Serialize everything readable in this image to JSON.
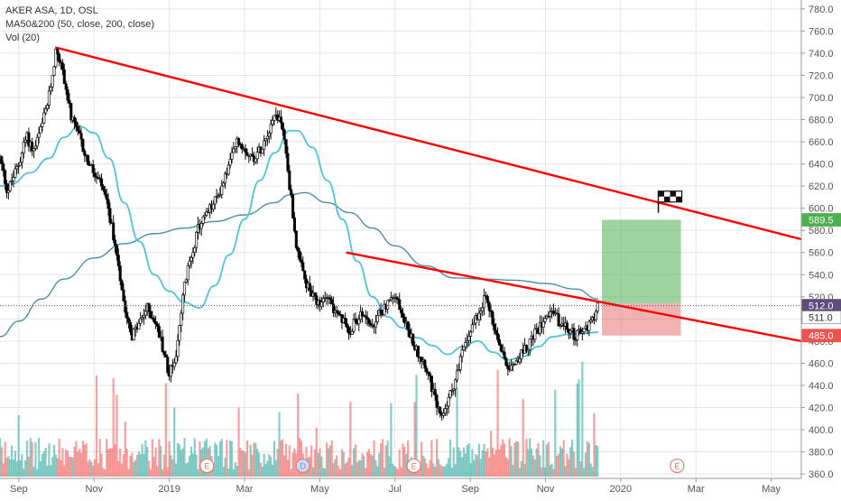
{
  "legend": {
    "title": "AKER ASA, 1D, OSL",
    "ma": "MA50&200 (50, close, 200, close)",
    "vol": "Vol (20)"
  },
  "colors": {
    "up": "#333333",
    "down": "#000000",
    "ma50": "#4fc3d9",
    "ma200": "#4a8ea7",
    "trend": "#ff0000",
    "vol_up": "#26a69a",
    "vol_down": "#ef5350",
    "target_zone": "#4caf50",
    "stop_zone": "#e57373",
    "current_price": "#5c4d7a",
    "background": "#ffffff",
    "grid": "#e6e6e6"
  },
  "chart_data": {
    "type": "candlestick",
    "title": "AKER ASA, 1D, OSL",
    "y_axis": {
      "ticks": [
        780.0,
        760.0,
        740.0,
        720.0,
        700.0,
        680.0,
        660.0,
        640.0,
        620.0,
        600.0,
        580.0,
        560.0,
        540.0,
        520.0,
        500.0,
        480.0,
        460.0,
        440.0,
        420.0,
        400.0,
        380.0,
        360.0
      ],
      "range": [
        356,
        788
      ],
      "position": "right"
    },
    "x_axis": {
      "labels": [
        "Sep",
        "Nov",
        "2019",
        "Mar",
        "May",
        "Jul",
        "Sep",
        "Nov",
        "2020",
        "Mar",
        "May"
      ],
      "label_months": [
        0,
        2,
        4,
        6,
        8,
        10,
        12,
        14,
        16,
        18,
        20
      ],
      "range_months": [
        -0.5,
        20.8
      ]
    },
    "price_labels": [
      {
        "value": 589.5,
        "text": "589.5",
        "style": "target"
      },
      {
        "value": 512.0,
        "text": "512.0",
        "style": "current"
      },
      {
        "value": 511.0,
        "text": "511.0",
        "style": "neutral"
      },
      {
        "value": 485.0,
        "text": "485.0",
        "style": "stop"
      }
    ],
    "current_price": 512.0,
    "price_path": [
      [
        -0.5,
        645
      ],
      [
        -0.3,
        615
      ],
      [
        0.0,
        640
      ],
      [
        0.2,
        665
      ],
      [
        0.4,
        652
      ],
      [
        0.6,
        672
      ],
      [
        0.8,
        700
      ],
      [
        1.0,
        745
      ],
      [
        1.2,
        718
      ],
      [
        1.4,
        680
      ],
      [
        1.6,
        665
      ],
      [
        1.8,
        645
      ],
      [
        2.0,
        630
      ],
      [
        2.2,
        620
      ],
      [
        2.4,
        595
      ],
      [
        2.6,
        560
      ],
      [
        2.8,
        515
      ],
      [
        3.0,
        485
      ],
      [
        3.2,
        495
      ],
      [
        3.4,
        510
      ],
      [
        3.6,
        500
      ],
      [
        3.8,
        478
      ],
      [
        4.0,
        450
      ],
      [
        4.2,
        470
      ],
      [
        4.4,
        530
      ],
      [
        4.6,
        560
      ],
      [
        4.8,
        585
      ],
      [
        5.0,
        595
      ],
      [
        5.2,
        605
      ],
      [
        5.4,
        620
      ],
      [
        5.6,
        640
      ],
      [
        5.8,
        660
      ],
      [
        6.0,
        655
      ],
      [
        6.2,
        645
      ],
      [
        6.4,
        652
      ],
      [
        6.6,
        668
      ],
      [
        6.8,
        685
      ],
      [
        7.0,
        678
      ],
      [
        7.2,
        620
      ],
      [
        7.4,
        560
      ],
      [
        7.6,
        535
      ],
      [
        7.8,
        520
      ],
      [
        8.0,
        510
      ],
      [
        8.2,
        525
      ],
      [
        8.4,
        505
      ],
      [
        8.6,
        498
      ],
      [
        8.8,
        490
      ],
      [
        9.0,
        500
      ],
      [
        9.2,
        505
      ],
      [
        9.4,
        490
      ],
      [
        9.6,
        505
      ],
      [
        9.8,
        515
      ],
      [
        10.0,
        520
      ],
      [
        10.2,
        505
      ],
      [
        10.4,
        485
      ],
      [
        10.6,
        470
      ],
      [
        10.8,
        460
      ],
      [
        11.0,
        435
      ],
      [
        11.2,
        410
      ],
      [
        11.4,
        425
      ],
      [
        11.6,
        445
      ],
      [
        11.8,
        470
      ],
      [
        12.0,
        490
      ],
      [
        12.2,
        505
      ],
      [
        12.4,
        520
      ],
      [
        12.6,
        498
      ],
      [
        12.8,
        475
      ],
      [
        13.0,
        458
      ],
      [
        13.2,
        462
      ],
      [
        13.4,
        470
      ],
      [
        13.6,
        480
      ],
      [
        13.8,
        490
      ],
      [
        14.0,
        505
      ],
      [
        14.2,
        508
      ],
      [
        14.4,
        495
      ],
      [
        14.6,
        490
      ],
      [
        14.8,
        485
      ],
      [
        15.0,
        488
      ],
      [
        15.2,
        498
      ],
      [
        15.4,
        511
      ]
    ],
    "ma50": [
      [
        -0.5,
        620
      ],
      [
        -0.2,
        622
      ],
      [
        0.3,
        632
      ],
      [
        0.8,
        645
      ],
      [
        1.2,
        664
      ],
      [
        1.6,
        674
      ],
      [
        2.0,
        668
      ],
      [
        2.4,
        645
      ],
      [
        2.8,
        605
      ],
      [
        3.2,
        570
      ],
      [
        3.6,
        540
      ],
      [
        4.0,
        525
      ],
      [
        4.4,
        515
      ],
      [
        4.8,
        510
      ],
      [
        5.2,
        530
      ],
      [
        5.6,
        558
      ],
      [
        6.0,
        590
      ],
      [
        6.4,
        625
      ],
      [
        6.8,
        650
      ],
      [
        7.2,
        670
      ],
      [
        7.4,
        670
      ],
      [
        7.8,
        655
      ],
      [
        8.2,
        625
      ],
      [
        8.6,
        590
      ],
      [
        9.0,
        552
      ],
      [
        9.4,
        520
      ],
      [
        9.8,
        502
      ],
      [
        10.2,
        492
      ],
      [
        10.6,
        483
      ],
      [
        11.0,
        476
      ],
      [
        11.4,
        468
      ],
      [
        11.8,
        475
      ],
      [
        12.2,
        480
      ],
      [
        12.6,
        470
      ],
      [
        13.0,
        463
      ],
      [
        13.4,
        466
      ],
      [
        13.8,
        475
      ],
      [
        14.2,
        484
      ],
      [
        14.6,
        486
      ],
      [
        15.0,
        487
      ],
      [
        15.4,
        488
      ]
    ],
    "ma200": [
      [
        -0.5,
        484
      ],
      [
        0.0,
        498
      ],
      [
        0.6,
        518
      ],
      [
        1.2,
        536
      ],
      [
        2.0,
        555
      ],
      [
        2.8,
        568
      ],
      [
        3.6,
        577
      ],
      [
        4.4,
        582
      ],
      [
        5.2,
        588
      ],
      [
        6.0,
        594
      ],
      [
        6.8,
        605
      ],
      [
        7.2,
        612
      ],
      [
        7.6,
        614
      ],
      [
        8.2,
        605
      ],
      [
        8.8,
        596
      ],
      [
        9.4,
        582
      ],
      [
        10.0,
        566
      ],
      [
        10.8,
        548
      ],
      [
        11.6,
        537
      ],
      [
        12.4,
        536
      ],
      [
        13.2,
        535
      ],
      [
        14.0,
        532
      ],
      [
        14.8,
        527
      ],
      [
        15.4,
        518
      ]
    ],
    "volume": {
      "y_max": 1000,
      "base": 100
    },
    "trendlines": [
      {
        "name": "upper-trendline",
        "from": [
          1.0,
          745
        ],
        "to": [
          20.8,
          572
        ]
      },
      {
        "name": "lower-trendline",
        "from": [
          8.7,
          560
        ],
        "to": [
          20.8,
          480
        ]
      }
    ],
    "zones": [
      {
        "name": "target-zone",
        "x0": 15.5,
        "x1": 17.6,
        "y0": 514,
        "y1": 589.5
      },
      {
        "name": "stop-zone",
        "x0": 15.5,
        "x1": 17.6,
        "y0": 485,
        "y1": 514
      }
    ],
    "flag_marker": {
      "x": 17.0,
      "y": 604
    },
    "event_markers": [
      {
        "x": 5.0,
        "label": "E"
      },
      {
        "x": 7.55,
        "label": "D"
      },
      {
        "x": 10.5,
        "label": "E"
      },
      {
        "x": 17.5,
        "label": "E"
      }
    ]
  }
}
